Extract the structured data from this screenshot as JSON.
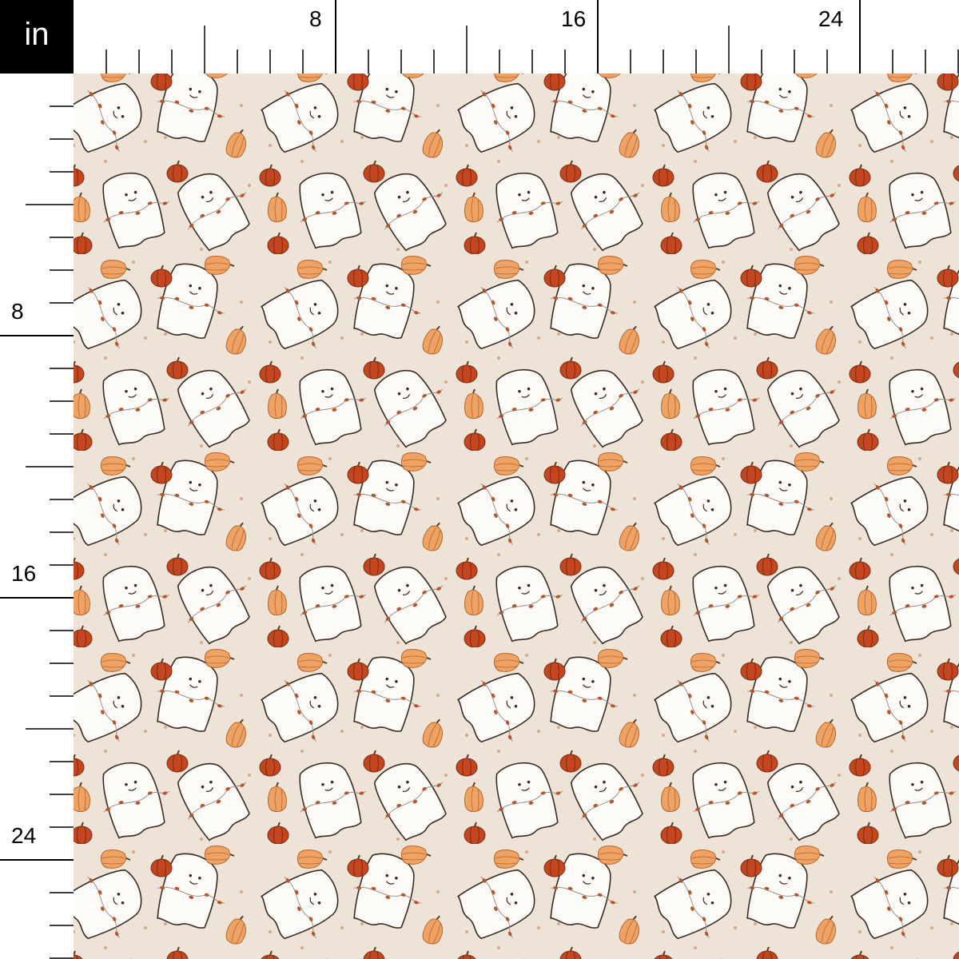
{
  "ruler": {
    "unit_label": "in",
    "top_labels": [
      "8",
      "16",
      "24"
    ],
    "left_labels": [
      "8",
      "16",
      "24"
    ],
    "tick_interval_inches": 1,
    "label_interval_inches": 8
  },
  "fabric": {
    "background_color": "#ede3d7",
    "ghost_color": "#fdfbf8",
    "outline_color": "#3b2a22",
    "pumpkin_color": "#c4461f",
    "squash_color": "#eea264",
    "leaf_color": "#b8542a",
    "star_color": "#d7a88c"
  }
}
